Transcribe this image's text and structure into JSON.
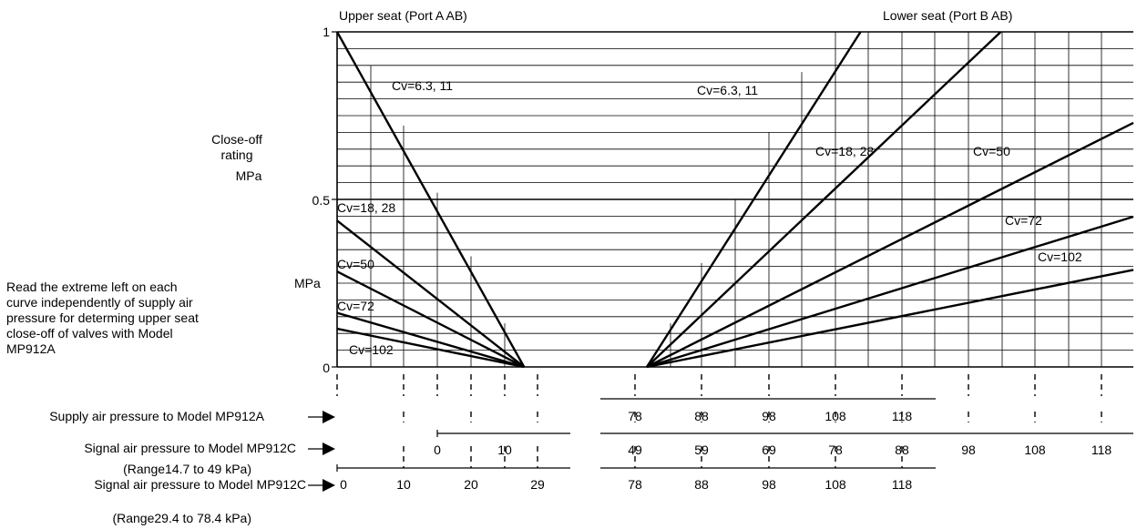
{
  "chart_data": {
    "type": "line",
    "titles": {
      "upper": "Upper seat (Port A AB)",
      "lower": "Lower seat (Port B AB)"
    },
    "ylabel": [
      "Close-off",
      "rating",
      "MPa"
    ],
    "ylabel_mid": "MPa",
    "ylim": [
      0,
      1
    ],
    "y_ticks": [
      "1",
      "0.5",
      "0"
    ],
    "grid": true,
    "note": [
      "Read the extreme left on each",
      "curve independently of supply air",
      "pressure for determing upper seat",
      "close-off of valves with Model",
      "MP912A"
    ],
    "upper_seat_series": [
      {
        "name": "Cv=6.3, 11",
        "values": [
          [
            0,
            1.0
          ],
          [
            28,
            0
          ]
        ]
      },
      {
        "name": "Cv=18, 28",
        "values": [
          [
            -1.5,
            0.46
          ],
          [
            28,
            0
          ]
        ]
      },
      {
        "name": "Cv=50",
        "values": [
          [
            -1.5,
            0.3
          ],
          [
            28,
            0
          ]
        ]
      },
      {
        "name": "Cv=72",
        "values": [
          [
            -1.5,
            0.17
          ],
          [
            28,
            0
          ]
        ]
      },
      {
        "name": "Cv=102",
        "values": [
          [
            -1.5,
            0.12
          ],
          [
            28,
            0
          ]
        ]
      }
    ],
    "lower_seat_series": [
      {
        "name": "Cv=6.3, 11",
        "values": [
          [
            78,
            0
          ],
          [
            110,
            1.0
          ]
        ]
      },
      {
        "name": "Cv=18, 28",
        "values": [
          [
            78,
            0
          ],
          [
            131,
            1.0
          ]
        ]
      },
      {
        "name": "Cv=50",
        "values": [
          [
            78,
            0
          ],
          [
            156,
            0.78
          ]
        ]
      },
      {
        "name": "Cv=72",
        "values": [
          [
            78,
            0
          ],
          [
            156,
            0.48
          ]
        ]
      },
      {
        "name": "Cv=102",
        "values": [
          [
            78,
            0
          ],
          [
            156,
            0.31
          ]
        ]
      }
    ],
    "scales": [
      {
        "label": "Supply air pressure to Model MP912A",
        "sublabel": "",
        "ticks": [
          "78",
          "88",
          "98",
          "108",
          "118"
        ]
      },
      {
        "label": "Signal air pressure to Model MP912C",
        "sublabel": "(Range14.7 to 49 kPa)",
        "ticks": [
          "0",
          "10",
          "49",
          "59",
          "69",
          "78",
          "88",
          "98",
          "108",
          "118"
        ]
      },
      {
        "label": "Signal air pressure to Model MP912C",
        "sublabel": "(Range29.4 to 78.4 kPa)",
        "ticks": [
          "0",
          "10",
          "20",
          "29",
          "78",
          "88",
          "98",
          "108",
          "118"
        ]
      }
    ]
  }
}
